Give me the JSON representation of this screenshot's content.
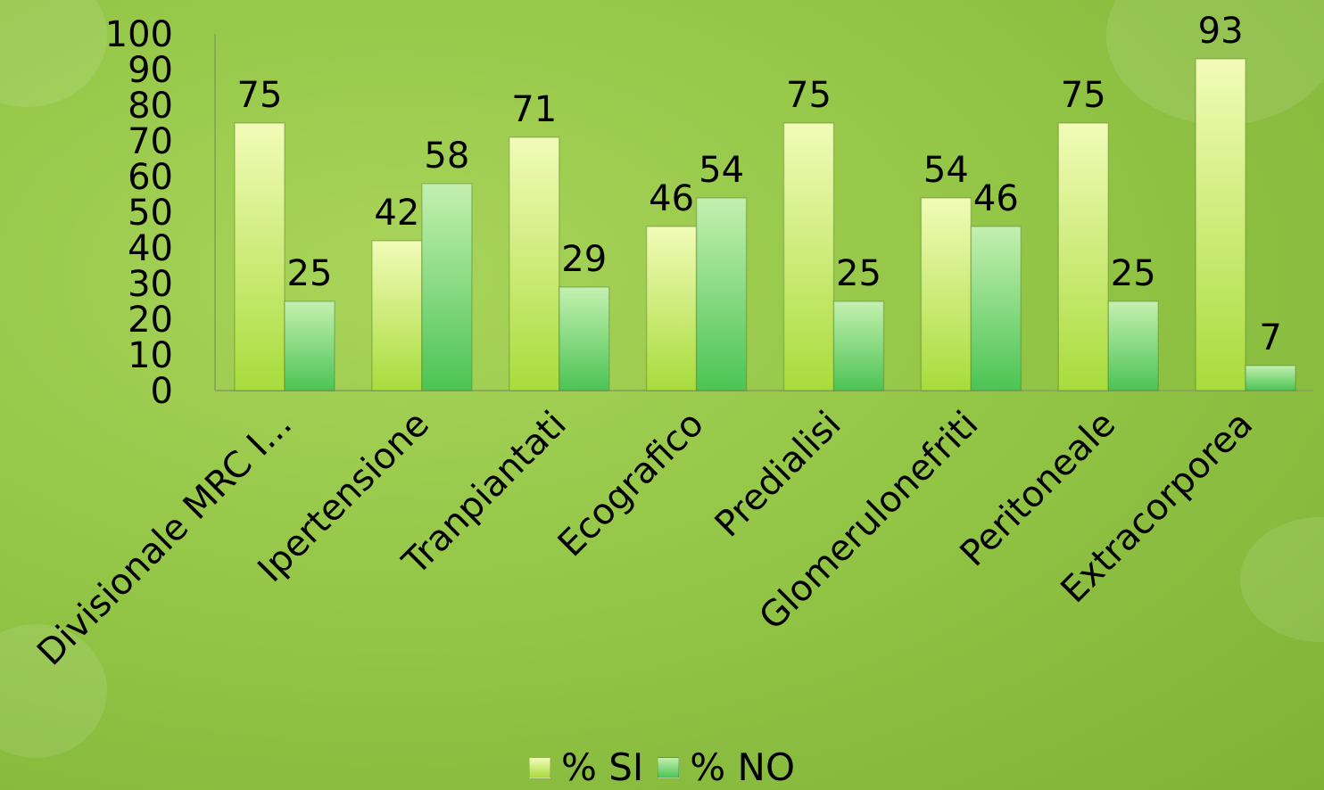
{
  "chart_data": {
    "type": "bar",
    "categories": [
      "Divisionale MRC I...",
      "Ipertensione",
      "Tranpiantati",
      "Ecografico",
      "Predialisi",
      "Glomerulonefriti",
      "Peritoneale",
      "Extracorporea"
    ],
    "series": [
      {
        "name": "% SI",
        "values": [
          75,
          42,
          71,
          46,
          75,
          54,
          75,
          93
        ],
        "color": "#e8f5a0"
      },
      {
        "name": "% NO",
        "values": [
          25,
          58,
          29,
          54,
          25,
          46,
          25,
          7
        ],
        "color": "#7ed880"
      }
    ],
    "yticks": [
      "0",
      "10",
      "20",
      "30",
      "40",
      "50",
      "60",
      "70",
      "80",
      "90",
      "100"
    ],
    "ylim": [
      0,
      100
    ],
    "grid": false,
    "legend_position": "bottom"
  }
}
